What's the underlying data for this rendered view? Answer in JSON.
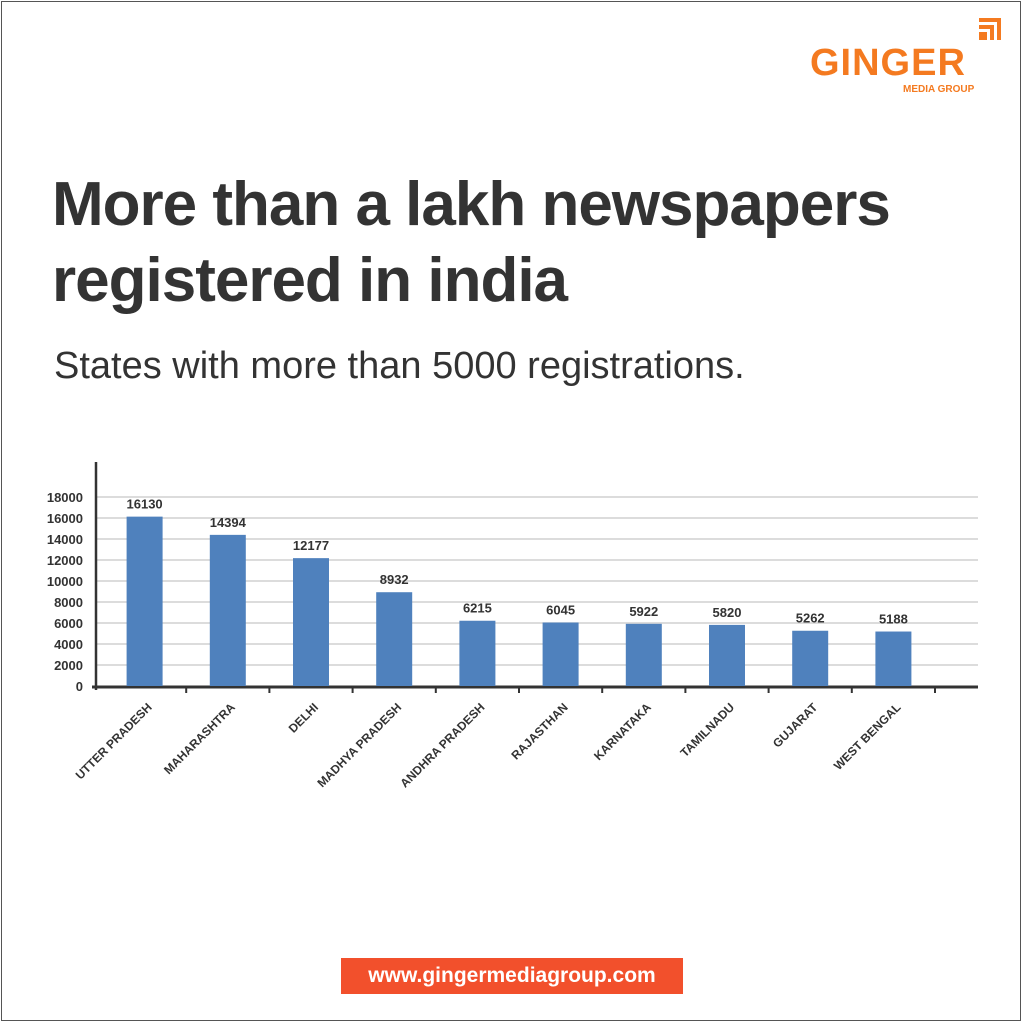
{
  "logo": {
    "name": "GINGER",
    "sub": "MEDIA GROUP",
    "color": "#f47a20"
  },
  "title_line1": "More than a lakh newspapers",
  "title_line2": "registered in india",
  "subtitle": "States with more than 5000 registrations.",
  "footer_url": "www.gingermediagroup.com",
  "chart_data": {
    "type": "bar",
    "categories": [
      "UTTER PRADESH",
      "MAHARASHTRA",
      "DELHI",
      "MADHYA PRADESH",
      "ANDHRA PRADESH",
      "RAJASTHAN",
      "KARNATAKA",
      "TAMILNADU",
      "GUJARAT",
      "WEST BENGAL"
    ],
    "values": [
      16130,
      14394,
      12177,
      8932,
      6215,
      6045,
      5922,
      5820,
      5262,
      5188
    ],
    "data_labels": [
      "16130",
      "14394",
      "12177",
      "8932",
      "6215",
      "6045",
      "5922",
      "5820",
      "5262",
      "5188"
    ],
    "yticks": [
      "0",
      "2000",
      "4000",
      "6000",
      "8000",
      "10000",
      "12000",
      "14000",
      "16000",
      "18000"
    ],
    "ylim": [
      0,
      18000
    ],
    "grid": true,
    "bar_color": "#4f81bd"
  }
}
